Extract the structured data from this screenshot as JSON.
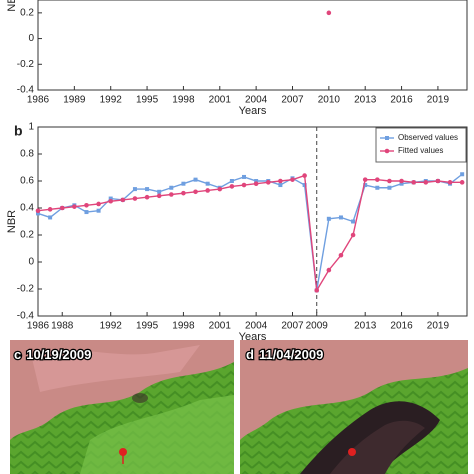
{
  "chart_data": [
    {
      "type": "line",
      "xlabel": "Years",
      "ylabel": "NBR",
      "xlim": [
        1986,
        2021.4
      ],
      "ylim": [
        -0.4,
        0.3
      ],
      "xticks": [
        1986,
        1989,
        1992,
        1995,
        1998,
        2001,
        2004,
        2007,
        2010,
        2013,
        2016,
        2019
      ],
      "yticks": [
        -0.4,
        -0.2,
        0,
        0.2
      ],
      "x": [
        2010
      ],
      "values": [
        0.2
      ],
      "color": "#e0457b"
    },
    {
      "type": "line",
      "panel_label": "b",
      "xlabel": "Years",
      "ylabel": "NBR",
      "xlim": [
        1986,
        2021.4
      ],
      "ylim": [
        -0.4,
        1
      ],
      "xticks": [
        1986,
        1988,
        1992,
        1995,
        1998,
        2001,
        2004,
        2007,
        2009,
        2013,
        2016,
        2019
      ],
      "yticks": [
        -0.4,
        -0.2,
        0,
        0.2,
        0.4,
        0.6,
        0.8,
        1
      ],
      "vline": 2009,
      "legend": "upper right",
      "x": [
        1986,
        1987,
        1988,
        1989,
        1990,
        1991,
        1992,
        1993,
        1994,
        1995,
        1996,
        1997,
        1998,
        1999,
        2000,
        2001,
        2002,
        2003,
        2004,
        2005,
        2006,
        2007,
        2008,
        2009,
        2010,
        2011,
        2012,
        2013,
        2014,
        2015,
        2016,
        2017,
        2018,
        2019,
        2020,
        2021
      ],
      "series": [
        {
          "name": "Observed values",
          "color": "#6f9fe0",
          "marker": "square",
          "values": [
            0.36,
            0.33,
            0.4,
            0.42,
            0.37,
            0.38,
            0.47,
            0.46,
            0.54,
            0.54,
            0.52,
            0.55,
            0.58,
            0.61,
            0.58,
            0.55,
            0.6,
            0.63,
            0.6,
            0.6,
            0.57,
            0.62,
            0.57,
            -0.21,
            0.32,
            0.33,
            0.3,
            0.57,
            0.55,
            0.55,
            0.58,
            0.59,
            0.6,
            0.6,
            0.58,
            0.65
          ]
        },
        {
          "name": "Fitted values",
          "color": "#e0457b",
          "marker": "circle",
          "values": [
            0.38,
            0.39,
            0.4,
            0.41,
            0.42,
            0.43,
            0.45,
            0.46,
            0.47,
            0.48,
            0.49,
            0.5,
            0.51,
            0.52,
            0.53,
            0.54,
            0.56,
            0.57,
            0.58,
            0.59,
            0.6,
            0.61,
            0.64,
            -0.21,
            -0.06,
            0.05,
            0.2,
            0.61,
            0.61,
            0.6,
            0.6,
            0.59,
            0.59,
            0.6,
            0.59,
            0.59
          ]
        }
      ]
    }
  ],
  "panels": [
    {
      "letter": "c",
      "date": "10/19/2009"
    },
    {
      "letter": "d",
      "date": "11/04/2009"
    }
  ]
}
